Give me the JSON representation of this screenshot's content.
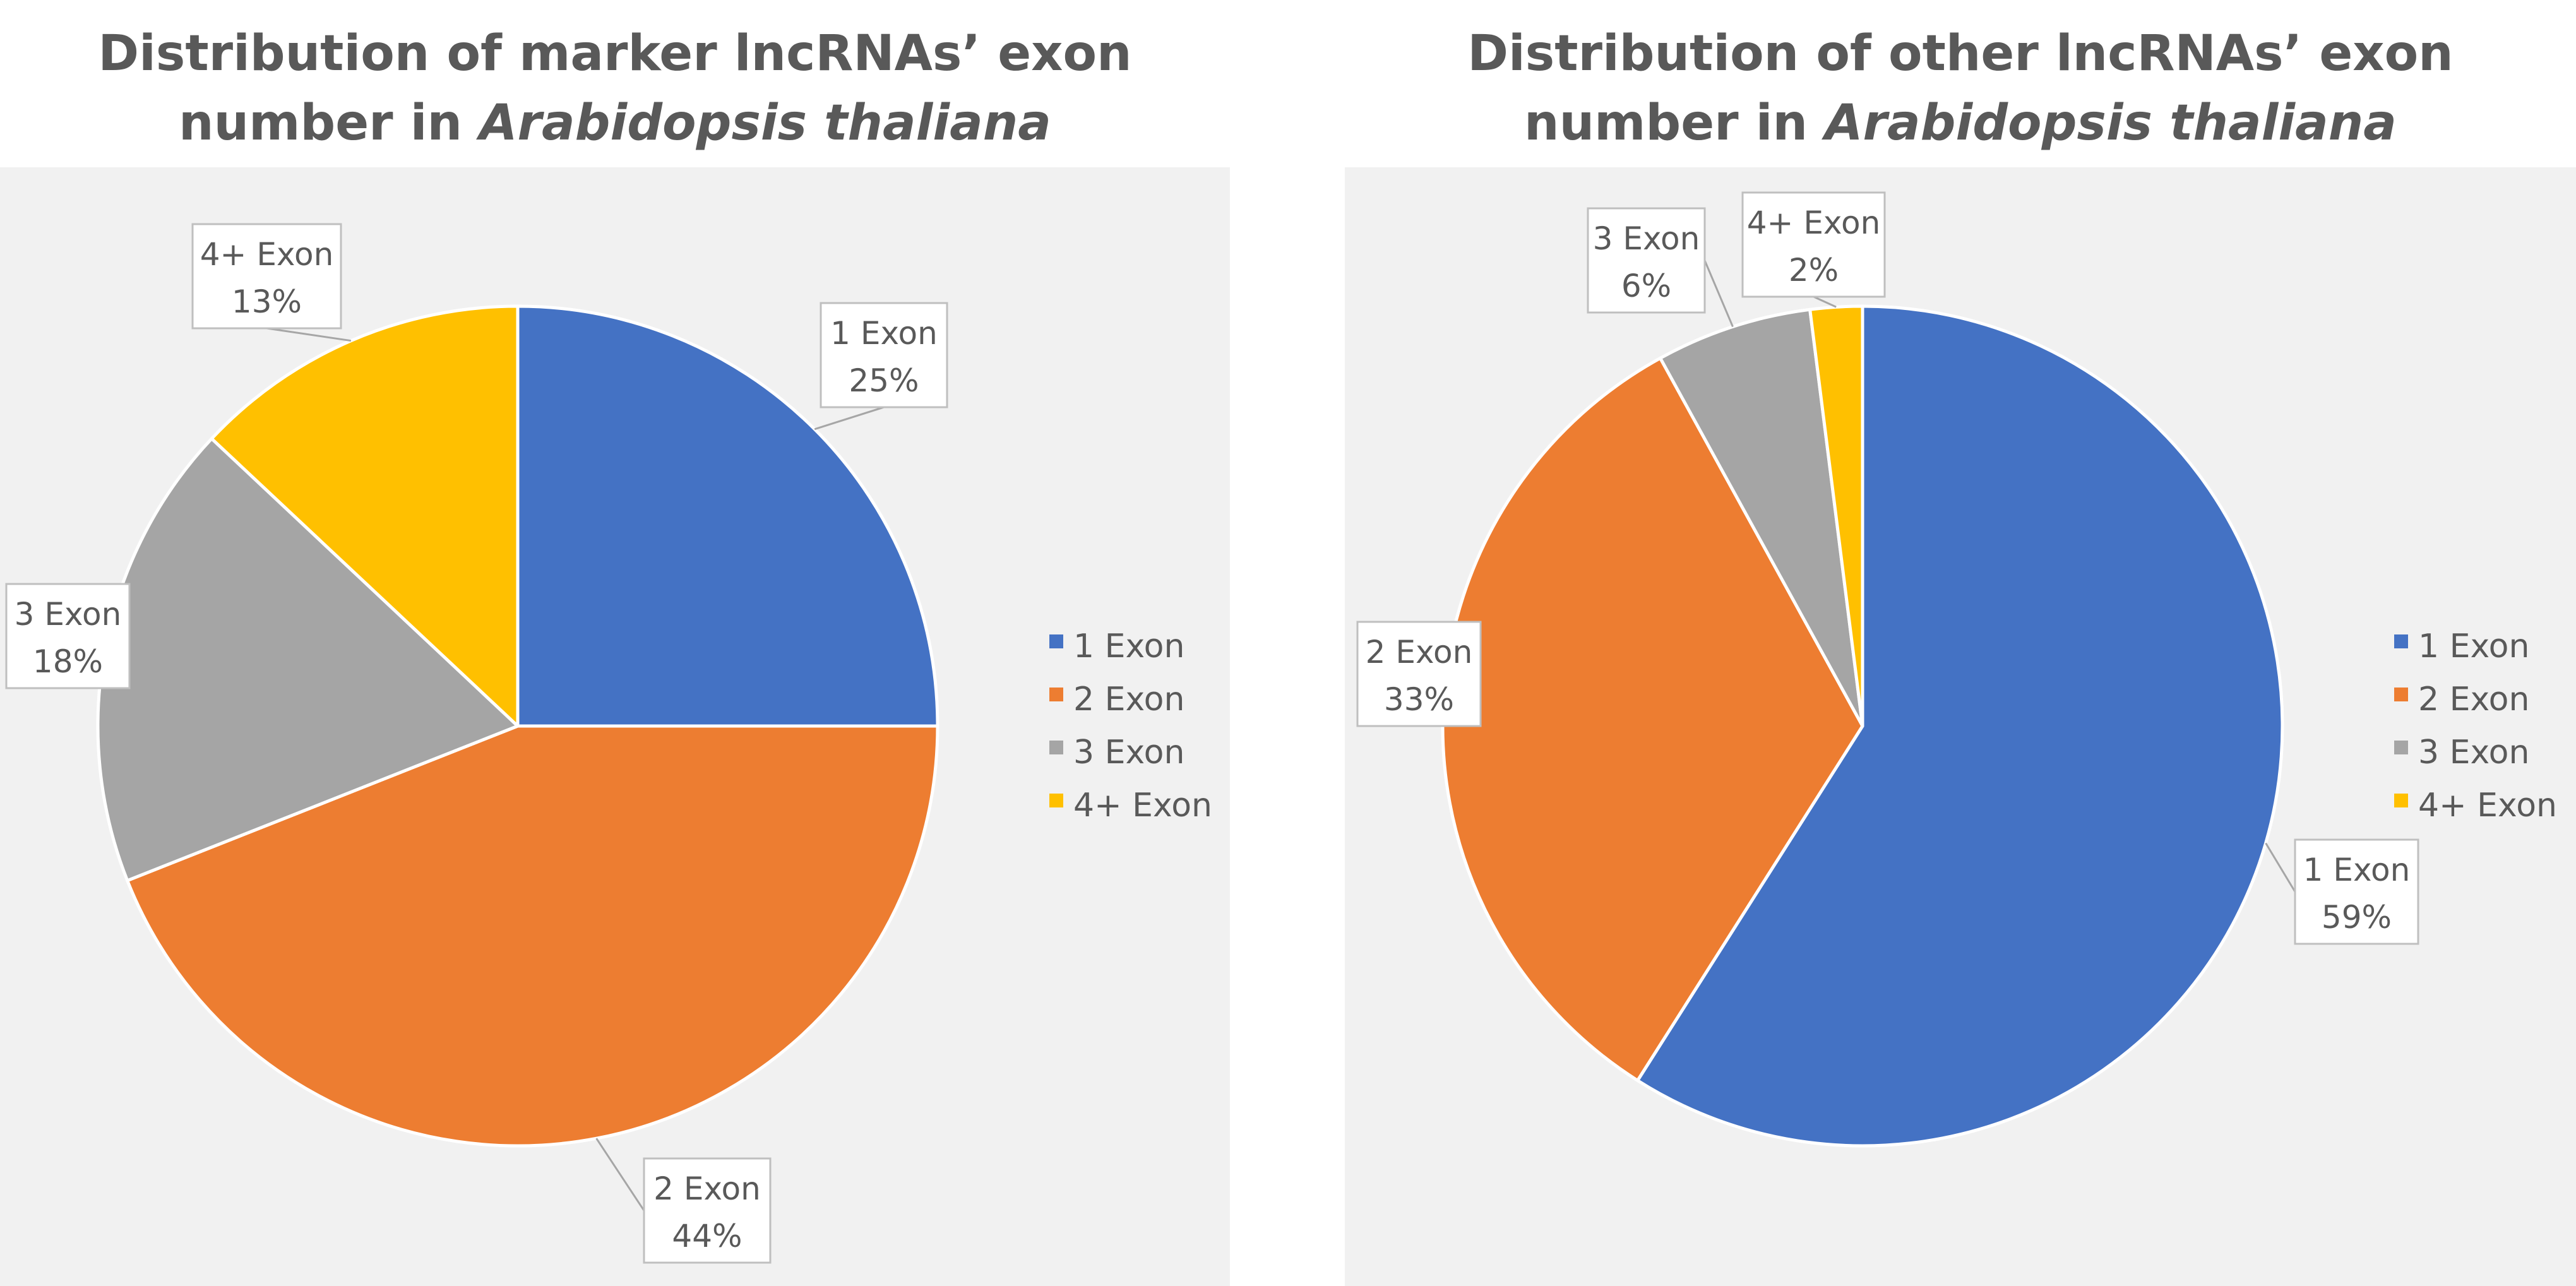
{
  "chart_data": [
    {
      "type": "pie",
      "title_line1": "Distribution of marker lncRNAs’ exon",
      "title_line2_prefix": "number in ",
      "title_line2_italic": "Arabidopsis thaliana",
      "categories": [
        "1 Exon",
        "2 Exon",
        "3 Exon",
        "4+ Exon"
      ],
      "values": [
        25,
        44,
        18,
        13
      ],
      "value_labels": [
        "25%",
        "44%",
        "18%",
        "13%"
      ],
      "colors": [
        "#4472c4",
        "#ed7d31",
        "#a5a5a5",
        "#ffc000"
      ],
      "legend_position": "right"
    },
    {
      "type": "pie",
      "title_line1": "Distribution of other lncRNAs’ exon",
      "title_line2_prefix": "number in ",
      "title_line2_italic": "Arabidopsis thaliana",
      "categories": [
        "1 Exon",
        "2 Exon",
        "3 Exon",
        "4+ Exon"
      ],
      "values": [
        59,
        33,
        6,
        2
      ],
      "value_labels": [
        "59%",
        "33%",
        "6%",
        "2%"
      ],
      "colors": [
        "#4472c4",
        "#ed7d31",
        "#a5a5a5",
        "#ffc000"
      ],
      "legend_position": "right"
    }
  ]
}
